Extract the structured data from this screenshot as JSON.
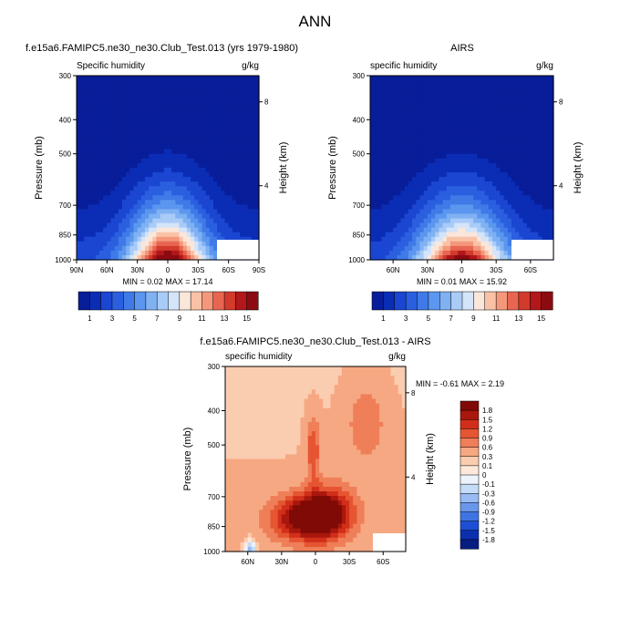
{
  "figure": {
    "title": "ANN"
  },
  "chart_data": [
    {
      "type": "heatmap",
      "panel_title": "f.e15a6.FAMIPC5.ne30_ne30.Club_Test.013 (yrs 1979-1980)",
      "variable": "Specific humidity",
      "units": "g/kg",
      "ylabel": "Pressure (mb)",
      "y2label": "Height (km)",
      "yticks": [
        "300",
        "400",
        "500",
        "700",
        "850",
        "1000"
      ],
      "y2ticks": [
        "8",
        "4"
      ],
      "xticks": [
        "90N",
        "60N",
        "30N",
        "0",
        "30S",
        "60S",
        "90S"
      ],
      "stats": "MIN =  0.02  MAX = 17.14",
      "min": 0.02,
      "max": 17.14,
      "peak_lat": 0,
      "peak_pressure": 1000,
      "colorbar_labels": [
        "1",
        "3",
        "5",
        "7",
        "9",
        "11",
        "13",
        "15"
      ],
      "levels": [
        1,
        2,
        3,
        4,
        5,
        6,
        7,
        8,
        9,
        10,
        11,
        12,
        13,
        14,
        15
      ]
    },
    {
      "type": "heatmap",
      "panel_title": "AIRS",
      "variable": "specific humidity",
      "units": "g/kg",
      "ylabel": "Pressure (mb)",
      "y2label": "Height (km)",
      "yticks": [
        "300",
        "400",
        "500",
        "700",
        "850",
        "1000"
      ],
      "y2ticks": [
        "8",
        "4"
      ],
      "xticks": [
        "60N",
        "30N",
        "0",
        "30S",
        "60S"
      ],
      "stats": "MIN =  0.01  MAX = 15.92",
      "min": 0.01,
      "max": 15.92,
      "peak_lat": 0,
      "peak_pressure": 1000,
      "colorbar_labels": [
        "1",
        "3",
        "5",
        "7",
        "9",
        "11",
        "13",
        "15"
      ],
      "levels": [
        1,
        2,
        3,
        4,
        5,
        6,
        7,
        8,
        9,
        10,
        11,
        12,
        13,
        14,
        15
      ]
    },
    {
      "type": "heatmap",
      "panel_title": "f.e15a6.FAMIPC5.ne30_ne30.Club_Test.013 - AIRS",
      "variable": "specific humidity",
      "units": "g/kg",
      "ylabel": "Pressure (mb)",
      "y2label": "Height (km)",
      "yticks": [
        "300",
        "400",
        "500",
        "700",
        "850",
        "1000"
      ],
      "y2ticks": [
        "8",
        "4"
      ],
      "xticks": [
        "60N",
        "30N",
        "0",
        "30S",
        "60S"
      ],
      "stats": "MIN = -0.61  MAX =  2.19",
      "min": -0.61,
      "max": 2.19,
      "colorbar_labels": [
        "1.8",
        "1.5",
        "1.2",
        "0.9",
        "0.6",
        "0.3",
        "0.1",
        "0",
        "-0.1",
        "-0.3",
        "-0.6",
        "-0.9",
        "-1.2",
        "-1.5",
        "-1.8"
      ],
      "levels": [
        -1.8,
        -1.5,
        -1.2,
        -0.9,
        -0.6,
        -0.3,
        -0.1,
        0,
        0.1,
        0.3,
        0.6,
        0.9,
        1.2,
        1.5,
        1.8
      ]
    }
  ],
  "colors": {
    "background": "#ffffff",
    "seq": [
      "#081d99",
      "#0b2db5",
      "#1b46d1",
      "#2a5fdf",
      "#3f7ae8",
      "#5b96ef",
      "#7fb1f3",
      "#a9cbf7",
      "#d4e4f9",
      "#fbe6da",
      "#f9c2a7",
      "#f4977a",
      "#e86552",
      "#d23a2c",
      "#b2171a",
      "#8c0b10"
    ],
    "div": [
      "#081d80",
      "#0c2fb0",
      "#1d4fd6",
      "#3f74e4",
      "#6a97ec",
      "#98bbf3",
      "#c5dcf8",
      "#ecf3fc",
      "#fde9db",
      "#fbcdb0",
      "#f6a882",
      "#ef7f58",
      "#e65532",
      "#d12f1a",
      "#a9170d",
      "#7f0a06"
    ]
  }
}
